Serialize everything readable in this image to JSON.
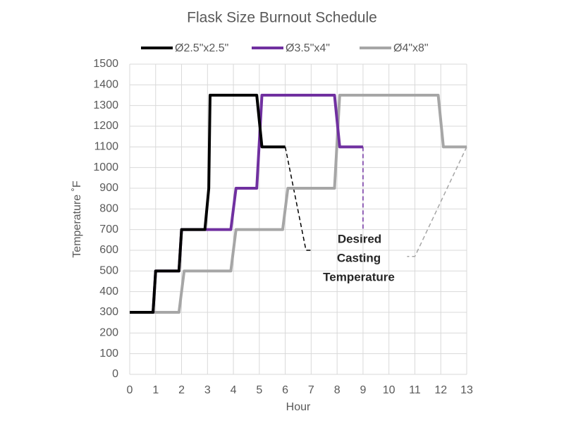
{
  "chart_data": {
    "type": "line",
    "title": "Flask Size Burnout Schedule",
    "xlabel": "Hour",
    "ylabel": "Temperature ˚F",
    "xlim": [
      0,
      13
    ],
    "xticks": [
      0,
      1,
      2,
      3,
      4,
      5,
      6,
      7,
      8,
      9,
      10,
      11,
      12,
      13
    ],
    "ylim": [
      0,
      1500
    ],
    "yticks": [
      0,
      100,
      200,
      300,
      400,
      500,
      600,
      700,
      800,
      900,
      1000,
      1100,
      1200,
      1300,
      1400,
      1500
    ],
    "grid": true,
    "legend": "top",
    "series": [
      {
        "name": "Ø2.5\"x2.5\"",
        "color": "#000000",
        "x": [
          0,
          0.9,
          1,
          1.9,
          2,
          2.9,
          3.05,
          3.1,
          4.9,
          5.1,
          6
        ],
        "values": [
          300,
          300,
          500,
          500,
          700,
          700,
          900,
          1350,
          1350,
          1100,
          1100
        ]
      },
      {
        "name": "Ø3.5\"x4\"",
        "color": "#7030a0",
        "x": [
          0,
          0.9,
          1,
          1.9,
          2,
          3.9,
          4.1,
          4.9,
          5.1,
          7.9,
          8.1,
          9
        ],
        "values": [
          300,
          300,
          500,
          500,
          700,
          700,
          900,
          900,
          1350,
          1350,
          1100,
          1100
        ]
      },
      {
        "name": "Ø4\"x8\"",
        "color": "#a6a6a6",
        "x": [
          0,
          1.9,
          2.1,
          3.9,
          4.1,
          5.9,
          6.1,
          7.9,
          8.1,
          11.9,
          12.1,
          13
        ],
        "values": [
          300,
          300,
          500,
          500,
          700,
          700,
          900,
          900,
          1350,
          1350,
          1100,
          1100
        ]
      }
    ],
    "guides": [
      {
        "color": "#000000",
        "x": [
          6,
          6.8,
          7
        ],
        "values": [
          1100,
          600,
          600
        ]
      },
      {
        "color": "#7030a0",
        "x": [
          9,
          9
        ],
        "values": [
          1100,
          700
        ]
      },
      {
        "color": "#a6a6a6",
        "x": [
          13,
          11,
          10.7
        ],
        "values": [
          1100,
          570,
          570
        ]
      }
    ],
    "annotation": [
      "Desired",
      "Casting",
      "Temperature"
    ]
  }
}
